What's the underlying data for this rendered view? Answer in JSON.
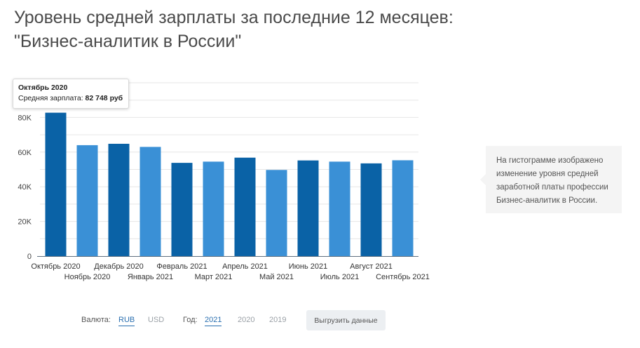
{
  "title": {
    "line1": "Уровень средней зарплаты за последние 12 месяцев:",
    "line2": "\"Бизнес-аналитик в России\""
  },
  "chart_data": {
    "type": "bar",
    "title": "Уровень средней зарплаты за последние 12 месяцев: \"Бизнес-аналитик в России\"",
    "categories": [
      "Октябрь 2020",
      "Ноябрь 2020",
      "Декабрь 2020",
      "Январь 2021",
      "Февраль 2021",
      "Март 2021",
      "Апрель 2021",
      "Май 2021",
      "Июнь 2021",
      "Июль 2021",
      "Август 2021",
      "Сентябрь 2021"
    ],
    "values": [
      82748,
      64000,
      64800,
      63000,
      53800,
      54500,
      56800,
      49700,
      55200,
      54500,
      53500,
      55300
    ],
    "ytick_labels": [
      "0",
      "20K",
      "40K",
      "60K",
      "80K"
    ],
    "ylim": [
      0,
      100000
    ],
    "ytick_step": 20000,
    "xlabel": "",
    "ylabel": "",
    "grid": true,
    "colors": {
      "dark": "#0a62a6",
      "light": "#3a90d6",
      "axis": "#5f6f80",
      "grid": "#e6e6e6"
    }
  },
  "tooltip": {
    "title": "Октябрь 2020",
    "label": "Средняя зарплата:",
    "value": "82 748 руб"
  },
  "info_text": "На гистограмме изображено изменение уровня средней заработной платы профессии Бизнес-аналитик в России.",
  "controls": {
    "currency_label": "Валюта:",
    "currencies": [
      "RUB",
      "USD"
    ],
    "year_label": "Год:",
    "years": [
      "2021",
      "2020",
      "2019"
    ],
    "export_label": "Выгрузить данные"
  }
}
